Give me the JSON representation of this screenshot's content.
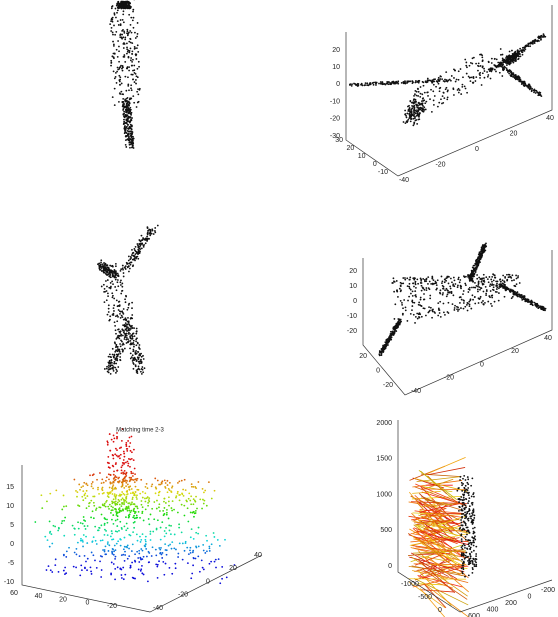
{
  "figure": {
    "axes": [
      {
        "zticks": [
          20,
          10,
          0,
          -10,
          -20,
          -30
        ],
        "yticks": [
          30,
          20,
          10,
          0,
          -10
        ],
        "xticks": [
          -40,
          -20,
          0,
          20,
          40
        ]
      },
      {
        "zticks": [
          20,
          10,
          0,
          -10,
          -20
        ],
        "yticks": [
          20,
          0,
          -20
        ],
        "xticks": [
          -40,
          -20,
          0,
          20,
          40
        ]
      },
      {
        "title": "Matching time 2-3",
        "zticks": [
          15,
          10,
          5,
          0,
          -5,
          -10
        ],
        "yticks": [
          60,
          40,
          20,
          0,
          -20
        ],
        "xticks": [
          -40,
          -20,
          0,
          20,
          40
        ]
      },
      {
        "zticks": [
          2000,
          1500,
          1000,
          500,
          0
        ],
        "yticks": [
          -1000,
          -500,
          0
        ],
        "xticks": [
          600,
          400,
          200,
          0,
          -200
        ]
      }
    ]
  }
}
